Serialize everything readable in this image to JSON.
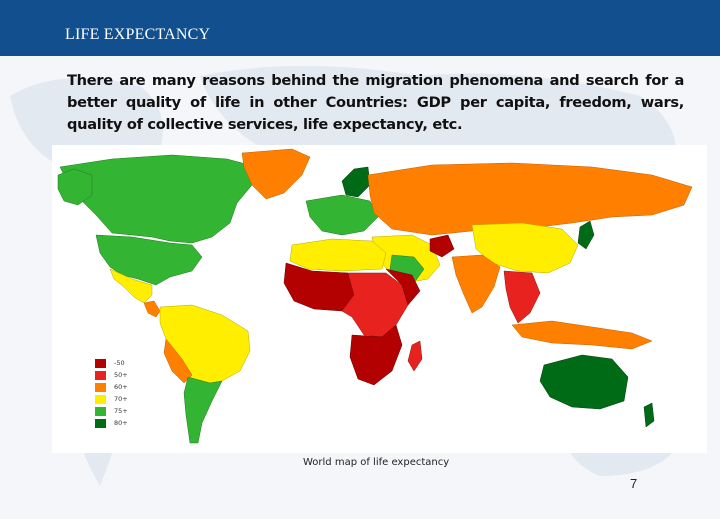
{
  "header": {
    "title": "LIFE EXPECTANCY"
  },
  "intro": {
    "text": "There are many reasons behind the migration phenomena and search for a better quality of life in other Countries: GDP per capita, freedom, wars, quality of collective services, life expectancy, etc."
  },
  "map": {
    "caption": "World map of life expectancy",
    "legend": [
      {
        "label": "-50",
        "color": "#b30000"
      },
      {
        "label": "50+",
        "color": "#e8231f"
      },
      {
        "label": "60+",
        "color": "#ff8000"
      },
      {
        "label": "70+",
        "color": "#ffee00"
      },
      {
        "label": "75+",
        "color": "#33b533"
      },
      {
        "label": "80+",
        "color": "#006b16"
      }
    ]
  },
  "footer": {
    "page_number": "7"
  }
}
